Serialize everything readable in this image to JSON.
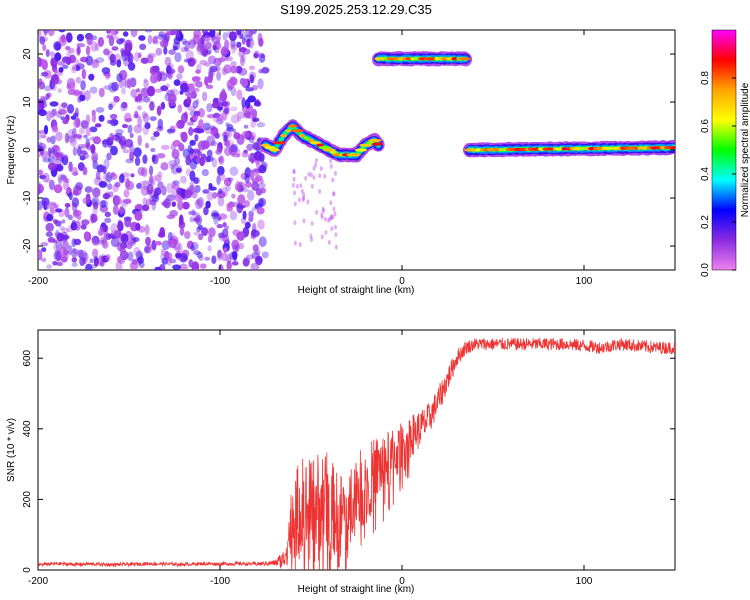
{
  "title": "S199.2025.253.12.29.C35",
  "chart_data": [
    {
      "type": "heatmap",
      "xlabel": "Height of straight line (km)",
      "ylabel": "Frequency (Hz)",
      "xlim": [
        -200,
        150
      ],
      "ylim": [
        -25,
        25
      ],
      "xticks": [
        -200,
        -100,
        0,
        100
      ],
      "yticks": [
        -20,
        -10,
        0,
        10,
        20
      ],
      "colorbar": {
        "label": "Normalized spectral amplitude",
        "range": [
          0,
          1
        ],
        "ticks": [
          0.0,
          0.2,
          0.4,
          0.6,
          0.8
        ],
        "tick_labels": [
          "0.0",
          "0.2",
          "0.4",
          "0.6",
          "0.8"
        ],
        "colormap": [
          "#ee82ee",
          "#8a2be2",
          "#0000ff",
          "#00ffff",
          "#00ff00",
          "#ffff00",
          "#ffa500",
          "#ff0000",
          "#ff00ff"
        ]
      },
      "noise_region": {
        "x": [
          -200,
          -75
        ],
        "y": [
          -25,
          25
        ],
        "amplitude": [
          0.05,
          0.2
        ]
      },
      "tracks": [
        {
          "x": [
            -75,
            -70,
            -65,
            -60,
            -55,
            -50,
            -45,
            -40,
            -35,
            -30,
            -25,
            -20,
            -15,
            -13
          ],
          "y": [
            1,
            0,
            3,
            5,
            3,
            2,
            1,
            0,
            -1,
            -1,
            -1,
            1,
            2,
            1
          ],
          "amplitude": 0.45
        },
        {
          "x": [
            -13,
            35
          ],
          "y": [
            19,
            19
          ],
          "amplitude": 0.6
        },
        {
          "x": [
            37,
            150
          ],
          "y": [
            0,
            0.5
          ],
          "amplitude": 0.5
        }
      ]
    },
    {
      "type": "line",
      "xlabel": "Height of straight line (km)",
      "ylabel": "SNR (10 * v/v)",
      "xlim": [
        -200,
        150
      ],
      "ylim": [
        0,
        680
      ],
      "xticks": [
        -200,
        -100,
        0,
        100
      ],
      "yticks": [
        0,
        200,
        400,
        600
      ],
      "series": [
        {
          "name": "SNR",
          "color": "#ee3333",
          "x": [
            -200,
            -190,
            -180,
            -170,
            -160,
            -150,
            -140,
            -130,
            -120,
            -110,
            -100,
            -90,
            -80,
            -70,
            -65,
            -60,
            -55,
            -50,
            -45,
            -40,
            -35,
            -30,
            -25,
            -20,
            -15,
            -10,
            -5,
            0,
            5,
            10,
            15,
            20,
            25,
            30,
            35,
            40,
            50,
            60,
            70,
            80,
            90,
            100,
            110,
            120,
            130,
            140,
            150
          ],
          "values": [
            15,
            18,
            16,
            17,
            15,
            16,
            18,
            17,
            16,
            18,
            17,
            18,
            17,
            20,
            30,
            150,
            180,
            170,
            200,
            190,
            150,
            180,
            240,
            230,
            280,
            300,
            320,
            350,
            380,
            400,
            430,
            480,
            540,
            600,
            630,
            640,
            640,
            640,
            640,
            640,
            640,
            635,
            630,
            640,
            635,
            630,
            630
          ],
          "noise_amplitude": [
            5,
            5,
            5,
            5,
            5,
            5,
            5,
            5,
            5,
            5,
            5,
            5,
            5,
            8,
            30,
            120,
            140,
            140,
            150,
            140,
            120,
            120,
            100,
            110,
            100,
            90,
            80,
            70,
            60,
            55,
            45,
            40,
            35,
            25,
            20,
            18,
            18,
            18,
            18,
            18,
            18,
            18,
            18,
            18,
            18,
            18,
            18
          ]
        }
      ]
    }
  ]
}
